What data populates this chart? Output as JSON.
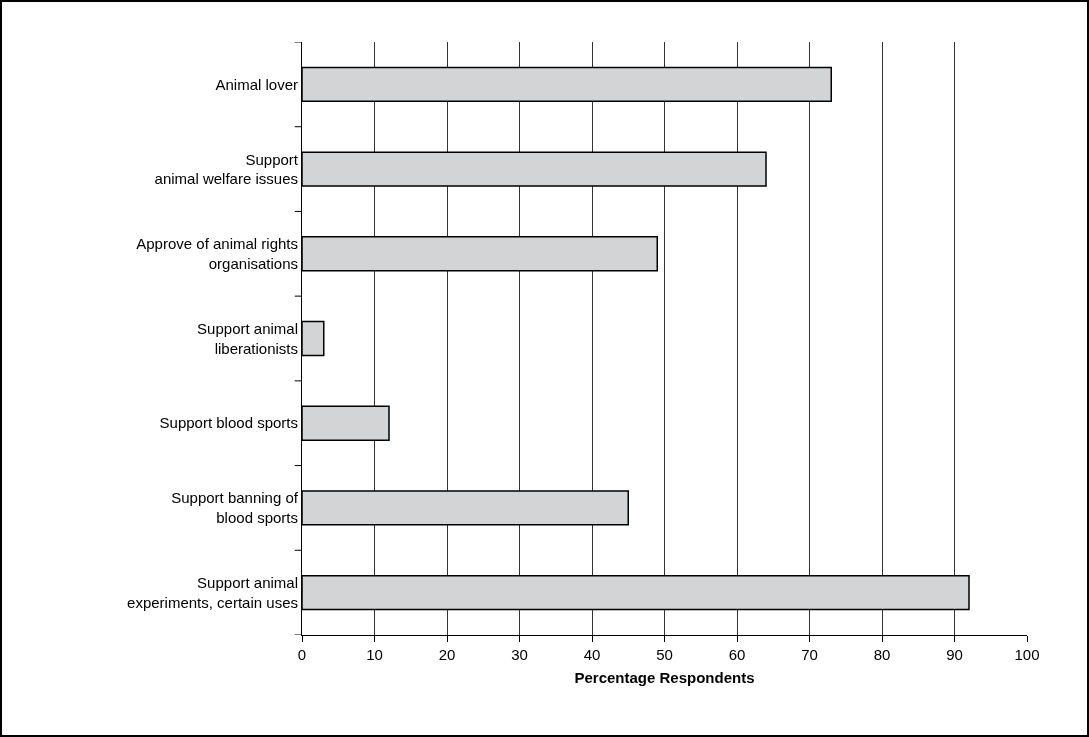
{
  "chart_data": {
    "type": "bar",
    "orientation": "horizontal",
    "categories": [
      "Animal lover",
      "Support\nanimal welfare issues",
      "Approve of animal rights\norganisations",
      "Support animal\nliberationists",
      "Support blood sports",
      "Support banning of\nblood sports",
      "Support animal\nexperiments, certain uses"
    ],
    "values": [
      73,
      64,
      49,
      3,
      12,
      45,
      92
    ],
    "color": "#d3d4d6",
    "xlabel": "Percentage Respondents",
    "xlim": [
      0,
      100
    ],
    "xticks": [
      0,
      10,
      20,
      30,
      40,
      50,
      60,
      70,
      80,
      90,
      100
    ],
    "grid": "x"
  }
}
